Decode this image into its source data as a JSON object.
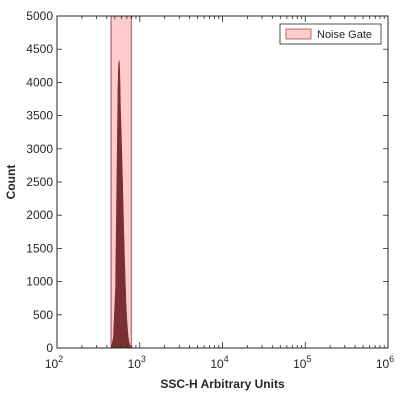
{
  "chart_data": {
    "type": "area",
    "xlabel": "SSC-H Arbitrary Units",
    "ylabel": "Count",
    "xscale": "log",
    "xlim": [
      100,
      1000000
    ],
    "ylim": [
      0,
      5000
    ],
    "grid": false,
    "legend_position": "top-right",
    "x_ticks": [
      {
        "base": "10",
        "exp": "2",
        "value": 100
      },
      {
        "base": "10",
        "exp": "3",
        "value": 1000
      },
      {
        "base": "10",
        "exp": "4",
        "value": 10000
      },
      {
        "base": "10",
        "exp": "5",
        "value": 100000
      },
      {
        "base": "10",
        "exp": "6",
        "value": 1000000
      }
    ],
    "y_ticks": [
      "0",
      "500",
      "1000",
      "1500",
      "2000",
      "2500",
      "3000",
      "3500",
      "4000",
      "4500",
      "5000"
    ],
    "noise_gate": {
      "label": "Noise Gate",
      "x_range": [
        450,
        790
      ],
      "color": "#ffcccc",
      "edge_color": "#a05050"
    },
    "histogram": {
      "color": "#7a3030",
      "x": [
        450,
        480,
        510,
        530,
        545,
        555,
        565,
        575,
        585,
        595,
        605,
        620,
        640,
        660,
        680,
        700,
        720,
        740,
        760,
        780,
        800
      ],
      "y": [
        0,
        150,
        900,
        2600,
        3900,
        4280,
        4330,
        4100,
        3600,
        3300,
        3000,
        2500,
        1800,
        1200,
        700,
        400,
        200,
        90,
        40,
        10,
        0
      ]
    }
  }
}
